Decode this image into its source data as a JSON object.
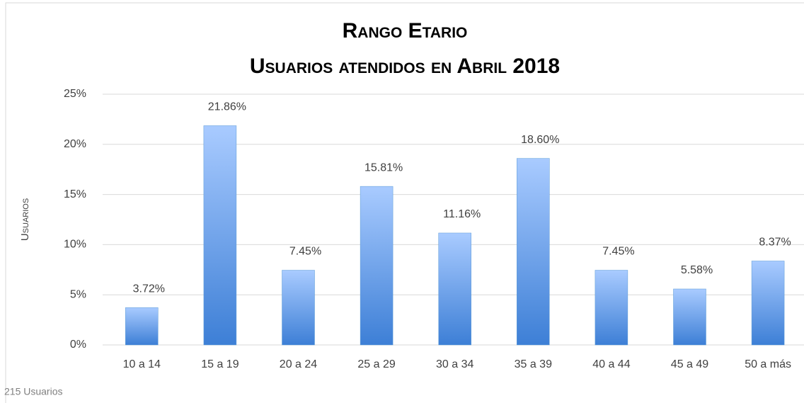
{
  "chart_data": {
    "type": "bar",
    "title": "Rango Etario",
    "subtitle": "Usuarios atendidos en Abril 2018",
    "y_label": "Usuarios",
    "footnote": "215 Usuarios",
    "categories": [
      "10 a 14",
      "15 a 19",
      "20 a 24",
      "25 a 29",
      "30 a 34",
      "35 a 39",
      "40 a 44",
      "45 a 49",
      "50 a más"
    ],
    "values": [
      3.72,
      21.86,
      7.45,
      15.81,
      11.16,
      18.6,
      7.45,
      5.58,
      8.37
    ],
    "value_labels": [
      "3.72%",
      "21.86%",
      "7.45%",
      "15.81%",
      "11.16%",
      "18.60%",
      "7.45%",
      "5.58%",
      "8.37%"
    ],
    "color": "#5b9bd5",
    "ylim": [
      0,
      25
    ],
    "yticks": [
      {
        "value": 0,
        "label": "0%"
      },
      {
        "value": 5,
        "label": "5%"
      },
      {
        "value": 10,
        "label": "10%"
      },
      {
        "value": 15,
        "label": "15%"
      },
      {
        "value": 20,
        "label": "20%"
      },
      {
        "value": 25,
        "label": "25%"
      }
    ],
    "grid": true
  }
}
